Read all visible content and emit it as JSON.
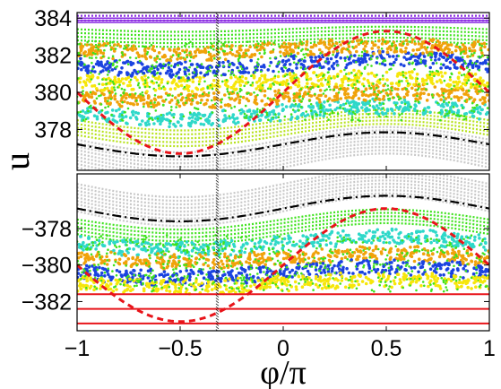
{
  "chart_data": [
    {
      "type": "scatter",
      "panel": "upper",
      "title": "",
      "xlabel": "",
      "ylabel": "u",
      "xlim": [
        -1,
        1
      ],
      "ylim": [
        375.8,
        384.3
      ],
      "yticks": [
        378,
        380,
        382,
        384
      ],
      "ytick_labels": [
        "378",
        "380",
        "382",
        "384"
      ],
      "grid": false,
      "band_center": 380.0,
      "separatrix_red": {
        "mid": 380.0,
        "amp": 3.3,
        "style": "dashed",
        "color": "#e8141a"
      },
      "separatrix_black": {
        "mid": 377.2,
        "amp": 0.65,
        "style": "dash-dot",
        "color": "#000000"
      },
      "regular_bands": [
        {
          "name": "gray",
          "color": "#c8c8c8",
          "mid": 376.7,
          "amp": 0.75,
          "width": 1.5
        },
        {
          "name": "yellow-green",
          "color": "#b6e21a",
          "mid": 378.1,
          "amp": 0.6,
          "width": 0.8
        },
        {
          "name": "green",
          "color": "#3ee21d",
          "mid": 383.0,
          "amp": 0.15,
          "width": 0.8
        },
        {
          "name": "purple",
          "color": "#8a2be2",
          "mid": 384.0,
          "amp": 0.0,
          "width": 0.25
        }
      ],
      "islands_rows": [
        {
          "y": 378.9,
          "color": "#2ed8c9",
          "amp": 0.6
        },
        {
          "y": 379.8,
          "color": "#f0a20a",
          "amp": 0.35
        },
        {
          "y": 380.6,
          "color": "#f6e60a",
          "amp": 0.3
        },
        {
          "y": 381.5,
          "color": "#1a43e0",
          "amp": 0.5
        },
        {
          "y": 382.3,
          "color": "#f0a20a",
          "amp": 0.3
        }
      ],
      "marker_line_x": -0.32
    },
    {
      "type": "scatter",
      "panel": "lower",
      "title": "",
      "xlabel": "φ/π",
      "ylabel": "u",
      "xlim": [
        -1,
        1
      ],
      "ylim": [
        -383.6,
        -375.0
      ],
      "xticks": [
        -1,
        -0.5,
        0,
        0.5,
        1
      ],
      "xtick_labels": [
        "−1",
        "−0.5",
        "0",
        "0.5",
        "1"
      ],
      "yticks": [
        -378,
        -380,
        -382
      ],
      "ytick_labels": [
        "−378",
        "−380",
        "−382"
      ],
      "grid": false,
      "separatrix_red": {
        "mid": -380.0,
        "amp": 3.1,
        "style": "dashed",
        "color": "#e8141a"
      },
      "separatrix_black": {
        "mid": -376.9,
        "amp": 0.7,
        "style": "dash-dot",
        "color": "#000000"
      },
      "regular_bands": [
        {
          "name": "gray",
          "color": "#c8c8c8",
          "mid": -376.3,
          "amp": 0.8,
          "width": 1.5
        },
        {
          "name": "green",
          "color": "#3ee21d",
          "mid": -377.9,
          "amp": 0.6,
          "width": 0.8
        }
      ],
      "islands_rows": [
        {
          "y": -378.8,
          "color": "#2ed8c9",
          "amp": 0.6
        },
        {
          "y": -379.6,
          "color": "#f0a20a",
          "amp": 0.35
        },
        {
          "y": -380.4,
          "color": "#1a43e0",
          "amp": 0.5
        },
        {
          "y": -381.0,
          "color": "#f6e60a",
          "amp": 0.3
        }
      ],
      "red_lines_y": [
        -381.6,
        -382.4,
        -383.2
      ],
      "marker_line_x": -0.32
    }
  ]
}
